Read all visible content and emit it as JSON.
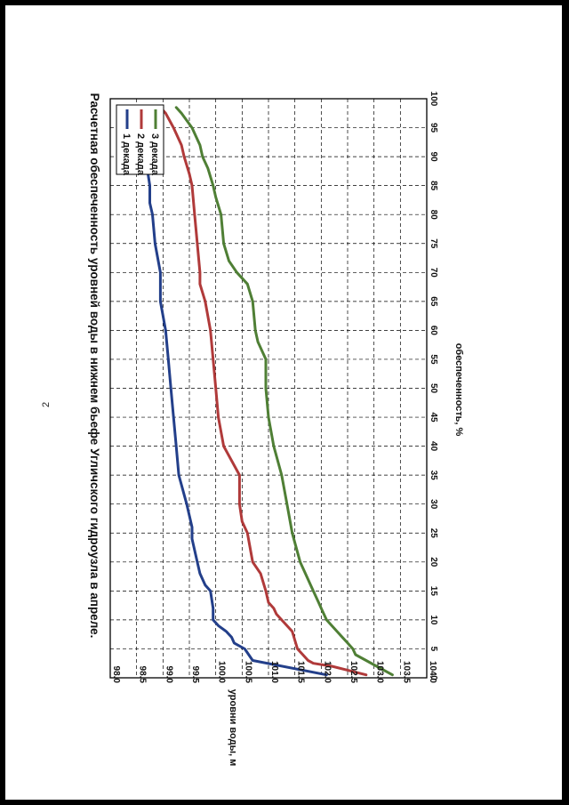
{
  "page_number": "2",
  "chart_data": {
    "type": "line",
    "title": "Расчетная обеспеченность уровней воды в нижнем бьефе Угличского гидроузла в апреле.",
    "xlabel": "обеспеченность, %",
    "ylabel": "уровни воды, м",
    "xlim": [
      0,
      100
    ],
    "ylim": [
      98.0,
      104.0
    ],
    "x_ticks": [
      "0",
      "5",
      "10",
      "15",
      "20",
      "25",
      "30",
      "35",
      "40",
      "45",
      "50",
      "55",
      "60",
      "65",
      "70",
      "75",
      "80",
      "85",
      "90",
      "95",
      "100"
    ],
    "y_ticks": [
      "98.0",
      "98.5",
      "99.0",
      "99.5",
      "100.0",
      "100.5",
      "101.0",
      "101.5",
      "102.0",
      "102.5",
      "103.0",
      "103.5",
      "104.0"
    ],
    "grid": true,
    "legend_position": "top-right",
    "series": [
      {
        "name": "1 декада",
        "color": "#233f8a",
        "x": [
          0.5,
          3,
          5,
          6,
          7,
          8,
          9,
          10,
          12,
          15,
          16,
          18,
          20,
          24,
          26,
          30,
          35,
          40,
          45,
          50,
          55,
          60,
          65,
          70,
          75,
          80,
          82,
          85,
          88,
          90,
          95,
          98.5
        ],
        "y": [
          102.1,
          100.7,
          100.55,
          100.35,
          100.3,
          100.2,
          100.05,
          99.95,
          99.95,
          99.9,
          99.8,
          99.7,
          99.65,
          99.55,
          99.55,
          99.45,
          99.3,
          99.25,
          99.2,
          99.15,
          99.1,
          99.05,
          98.95,
          98.95,
          98.85,
          98.8,
          98.75,
          98.75,
          98.7,
          98.7,
          98.65,
          98.6
        ]
      },
      {
        "name": "2 декада",
        "color": "#b03a3a",
        "x": [
          0.5,
          2,
          2.5,
          3,
          4,
          5,
          8,
          10,
          11,
          12,
          13,
          15,
          18,
          20,
          25,
          27,
          30,
          35,
          40,
          45,
          50,
          55,
          60,
          65,
          68,
          70,
          75,
          80,
          85,
          87,
          90,
          92,
          95,
          97.5,
          98.5
        ],
        "y": [
          102.85,
          102.2,
          101.85,
          101.75,
          101.65,
          101.55,
          101.45,
          101.25,
          101.15,
          101.1,
          101.0,
          100.95,
          100.85,
          100.7,
          100.6,
          100.5,
          100.45,
          100.45,
          100.15,
          100.05,
          100.0,
          99.95,
          99.9,
          99.8,
          99.7,
          99.7,
          99.65,
          99.6,
          99.55,
          99.5,
          99.4,
          99.35,
          99.2,
          99.05,
          98.95
        ]
      },
      {
        "name": "3 декада",
        "color": "#4f7f35",
        "x": [
          0.5,
          2,
          3,
          4,
          5,
          6,
          8,
          9,
          10,
          12,
          13,
          15,
          18,
          20,
          25,
          30,
          35,
          40,
          45,
          50,
          55,
          58,
          60,
          65,
          68,
          70,
          72,
          75,
          80,
          83,
          85,
          88,
          90,
          92,
          95,
          97.5,
          98.5
        ],
        "y": [
          103.35,
          103.05,
          102.85,
          102.65,
          102.6,
          102.5,
          102.3,
          102.2,
          102.1,
          102.0,
          101.95,
          101.85,
          101.7,
          101.6,
          101.45,
          101.35,
          101.25,
          101.1,
          101.0,
          100.95,
          100.95,
          100.8,
          100.75,
          100.7,
          100.6,
          100.4,
          100.25,
          100.15,
          100.1,
          100.0,
          99.95,
          99.85,
          99.75,
          99.7,
          99.55,
          99.35,
          99.25
        ]
      }
    ]
  }
}
